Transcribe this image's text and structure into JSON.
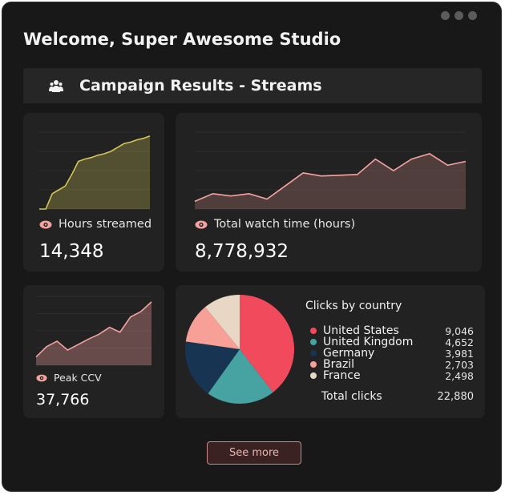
{
  "header": {
    "welcome": "Welcome, Super Awesome Studio",
    "campaign_title": "Campaign Results - Streams"
  },
  "colors": {
    "accent": "#f5a3a0",
    "hours_line": "#d4c45a",
    "watch_line": "#f5a3a0",
    "pie": [
      "#f04a5c",
      "#46a3a1",
      "#173552",
      "#f7a098",
      "#e8d7c5"
    ]
  },
  "metrics": {
    "hours_streamed": {
      "label": "Hours streamed",
      "value": "14,348",
      "icon": "eye-icon"
    },
    "total_watch_time": {
      "label": "Total watch time (hours)",
      "value": "8,778,932",
      "icon": "eye-icon"
    },
    "peak_ccv": {
      "label": "Peak CCV",
      "value": "37,766",
      "icon": "eye-icon"
    }
  },
  "clicks": {
    "title": "Clicks by country",
    "countries": [
      {
        "name": "United States",
        "value": "9,046",
        "clicks": 9046,
        "color": "#f04a5c"
      },
      {
        "name": "United Kingdom",
        "value": "4,652",
        "clicks": 4652,
        "color": "#46a3a1"
      },
      {
        "name": "Germany",
        "value": "3,981",
        "clicks": 3981,
        "color": "#173552"
      },
      {
        "name": "Brazil",
        "value": "2,703",
        "clicks": 2703,
        "color": "#f7a098"
      },
      {
        "name": "France",
        "value": "2,498",
        "clicks": 2498,
        "color": "#e8d7c5"
      }
    ],
    "total_label": "Total clicks",
    "total_value": "22,880"
  },
  "chart_data": [
    {
      "type": "area",
      "x": [
        1,
        2,
        3,
        4,
        5,
        6,
        7,
        8,
        9,
        10,
        11,
        12,
        13,
        14,
        15,
        16,
        17,
        18
      ],
      "values": [
        0,
        0,
        20,
        25,
        30,
        45,
        62,
        65,
        67,
        70,
        72,
        75,
        80,
        85,
        87,
        90,
        92,
        95
      ],
      "ylim": [
        0,
        100
      ],
      "grid": true
    },
    {
      "type": "area",
      "x": [
        1,
        2,
        3,
        4,
        5,
        6,
        7,
        8,
        9,
        10,
        11,
        12,
        13,
        14,
        15,
        16
      ],
      "values": [
        10,
        20,
        17,
        20,
        13,
        30,
        47,
        43,
        44,
        45,
        65,
        50,
        65,
        72,
        57,
        62
      ],
      "ylim": [
        0,
        100
      ],
      "grid": true
    },
    {
      "type": "area",
      "x": [
        1,
        2,
        3,
        4,
        5,
        6,
        7,
        8,
        9,
        10,
        11,
        12
      ],
      "values": [
        12,
        27,
        35,
        22,
        30,
        38,
        45,
        55,
        48,
        70,
        78,
        92
      ],
      "ylim": [
        0,
        100
      ],
      "grid": true
    },
    {
      "type": "pie",
      "categories": [
        "United States",
        "United Kingdom",
        "Germany",
        "Brazil",
        "France"
      ],
      "values": [
        9046,
        4652,
        3981,
        2703,
        2498
      ],
      "title": "Clicks by country"
    }
  ],
  "footer": {
    "see_more_label": "See more"
  }
}
